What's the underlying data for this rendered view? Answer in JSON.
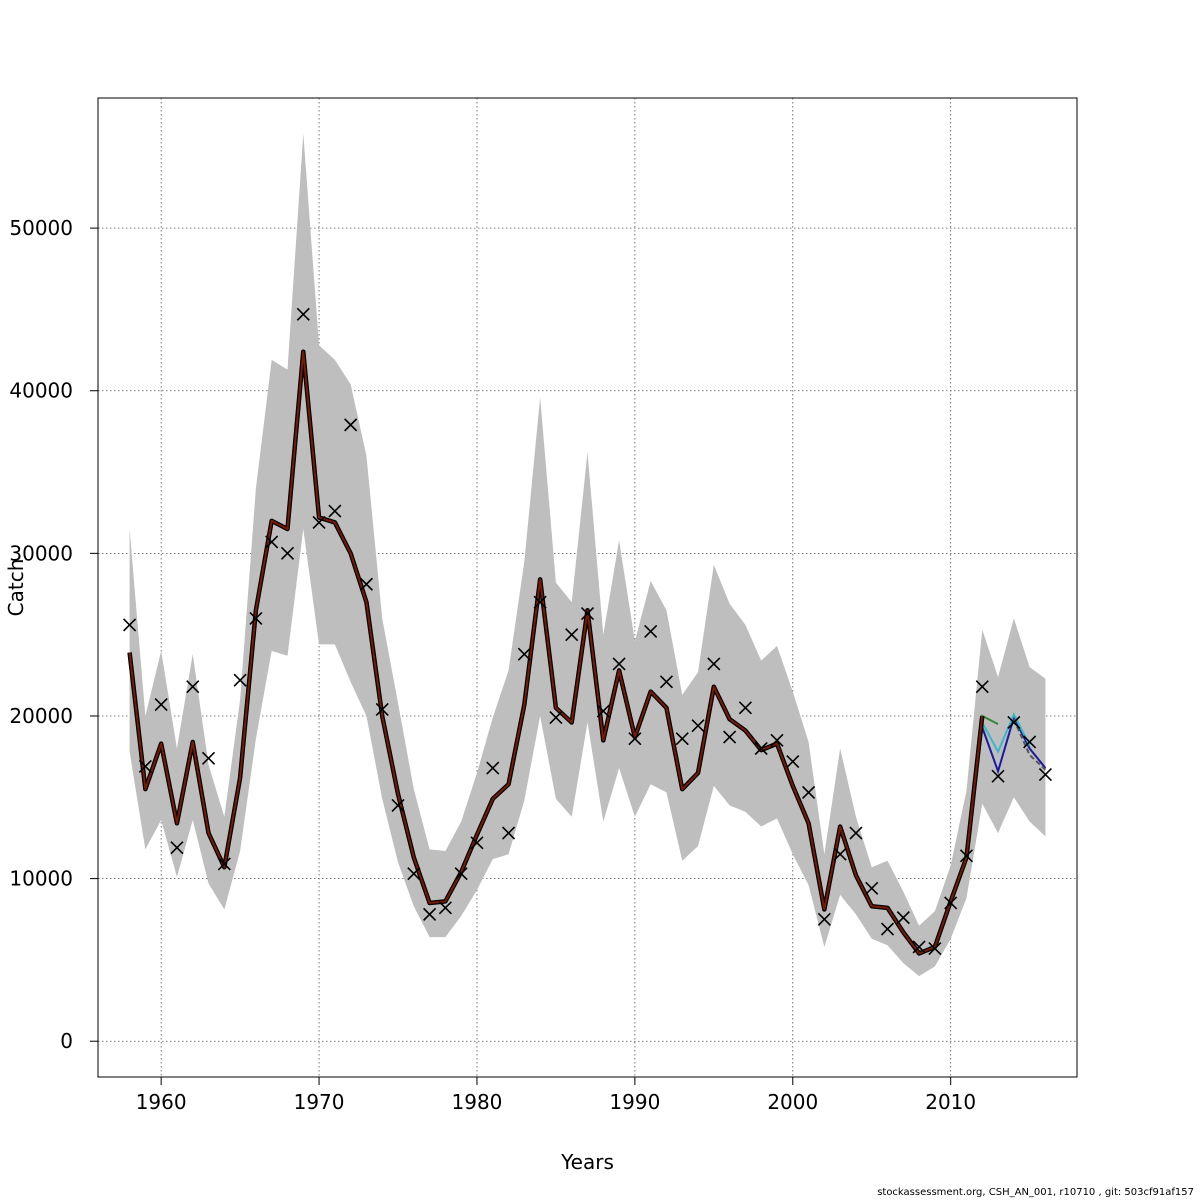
{
  "chart_data": {
    "type": "line",
    "xlabel": "Years",
    "ylabel": "Catch",
    "xlim": [
      1956,
      2018
    ],
    "ylim": [
      -2200,
      58000
    ],
    "x_ticks": [
      1960,
      1970,
      1980,
      1990,
      2000,
      2010
    ],
    "y_ticks": [
      0,
      10000,
      20000,
      30000,
      40000,
      50000
    ],
    "x_tick_labels": [
      "1960",
      "1970",
      "1980",
      "1990",
      "2000",
      "2010"
    ],
    "y_tick_labels": [
      "0",
      "10000",
      "20000",
      "30000",
      "40000",
      "50000"
    ],
    "grid": true,
    "band_color": "#bebebe",
    "years": [
      1958,
      1959,
      1960,
      1961,
      1962,
      1963,
      1964,
      1965,
      1966,
      1967,
      1968,
      1969,
      1970,
      1971,
      1972,
      1973,
      1974,
      1975,
      1976,
      1977,
      1978,
      1979,
      1980,
      1981,
      1982,
      1983,
      1984,
      1985,
      1986,
      1987,
      1988,
      1989,
      1990,
      1991,
      1992,
      1993,
      1994,
      1995,
      1996,
      1997,
      1998,
      1999,
      2000,
      2001,
      2002,
      2003,
      2004,
      2005,
      2006,
      2007,
      2008,
      2009,
      2010,
      2011,
      2012,
      2013,
      2014,
      2015,
      2016
    ],
    "band_upper": [
      31500,
      20000,
      24000,
      18000,
      23800,
      17000,
      13800,
      21000,
      34000,
      41900,
      41300,
      55800,
      42800,
      41900,
      40400,
      36000,
      26000,
      20800,
      15500,
      11800,
      11700,
      13500,
      16500,
      19900,
      22800,
      29500,
      39600,
      28200,
      27000,
      36200,
      25000,
      30800,
      24600,
      28300,
      26500,
      21300,
      22700,
      29300,
      26900,
      25600,
      23400,
      24300,
      21500,
      18400,
      11500,
      18000,
      13800,
      10700,
      11100,
      9200,
      7100,
      8000,
      10800,
      15400,
      25300,
      22400,
      26000,
      23000,
      22300
    ],
    "band_lower": [
      17800,
      11800,
      13600,
      10100,
      13600,
      9700,
      8100,
      11700,
      18600,
      24000,
      23700,
      31500,
      24400,
      24400,
      22100,
      20000,
      14900,
      11000,
      8300,
      6400,
      6400,
      7700,
      9300,
      11200,
      11500,
      14800,
      20000,
      14900,
      13800,
      19600,
      13500,
      16800,
      13800,
      15800,
      15300,
      11100,
      12000,
      15700,
      14500,
      14100,
      13200,
      13700,
      11500,
      9600,
      5800,
      9000,
      7800,
      6300,
      5900,
      4800,
      4000,
      4600,
      6300,
      8800,
      14600,
      12800,
      15000,
      13500,
      12600
    ],
    "fitted": [
      23900,
      15500,
      18300,
      13400,
      18400,
      12800,
      10700,
      16200,
      26500,
      32000,
      31500,
      42400,
      32200,
      31900,
      30000,
      27000,
      20000,
      15200,
      11300,
      8500,
      8600,
      10400,
      12700,
      14900,
      15800,
      20700,
      28400,
      20500,
      19600,
      26500,
      18500,
      22800,
      18700,
      21500,
      20500,
      15500,
      16500,
      21800,
      19800,
      19100,
      17900,
      18300,
      15700,
      13400,
      8100,
      13200,
      10200,
      8300,
      8200,
      6700,
      5400,
      5800,
      8600,
      11300,
      20000,
      null,
      null,
      null,
      null
    ],
    "observed": [
      25600,
      16900,
      20700,
      11900,
      21800,
      17400,
      10900,
      22200,
      26000,
      30700,
      30000,
      44700,
      31900,
      32600,
      37900,
      28100,
      20400,
      14500,
      10300,
      7800,
      8200,
      10300,
      12200,
      16800,
      12800,
      23800,
      27000,
      19900,
      25000,
      26300,
      20300,
      23200,
      18600,
      25200,
      22100,
      18600,
      19400,
      23200,
      18700,
      20500,
      18000,
      18500,
      17200,
      15300,
      7500,
      11500,
      12800,
      9400,
      6900,
      7600,
      5800,
      5700,
      8500,
      11400,
      21800,
      16300,
      19600,
      18400,
      16400
    ],
    "retro_peels": [
      {
        "color": "#1a1a9e",
        "years": [
          2011,
          2012,
          2013,
          2014,
          2015,
          2016
        ],
        "values": [
          11300,
          19300,
          16600,
          19900,
          18000,
          16800
        ]
      },
      {
        "color": "#3ab8c8",
        "years": [
          2011,
          2012,
          2013,
          2014,
          2015
        ],
        "values": [
          11300,
          19600,
          17800,
          20100,
          18200
        ]
      },
      {
        "color": "#2e8b3a",
        "years": [
          2010,
          2011,
          2012,
          2013
        ],
        "values": [
          8600,
          11300,
          20000,
          19500
        ]
      },
      {
        "color": "#c8d040",
        "years": [
          2008,
          2009,
          2010,
          2011,
          2012
        ],
        "values": [
          5400,
          5900,
          8400,
          11000,
          19500
        ]
      },
      {
        "color": "#555555",
        "years": [
          2014,
          2015,
          2016
        ],
        "values": [
          19800,
          17600,
          16700
        ]
      }
    ],
    "series_colors": {
      "fitted": "#7a1a00",
      "fitted_shadow": "#000000",
      "observed_marker": "#000000"
    }
  },
  "footer": "stockassessment.org, CSH_AN_001, r10710 , git: 503cf91af157"
}
